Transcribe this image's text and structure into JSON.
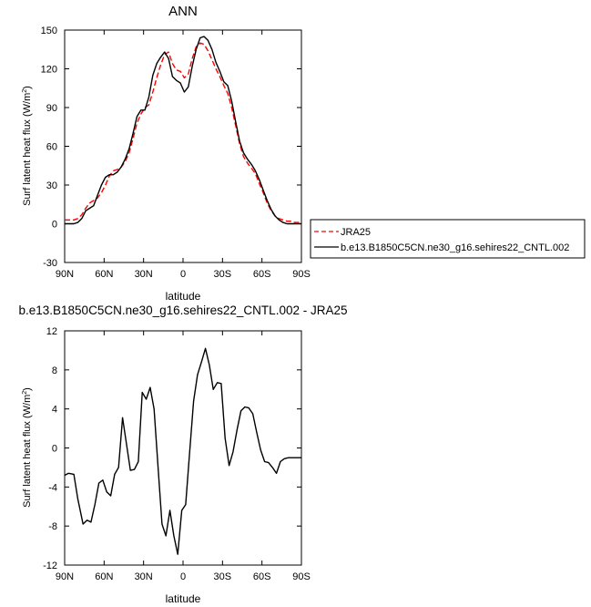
{
  "chart_data": [
    {
      "type": "line",
      "title": "ANN",
      "xlabel": "latitude",
      "ylabel": "Surf latent heat flux (W/m",
      "ylabel_sup": "2",
      "ylabel_close": ")",
      "xlim": [
        90,
        -90
      ],
      "ylim": [
        -30,
        150
      ],
      "xticks": [
        90,
        60,
        30,
        0,
        -30,
        -60,
        -90
      ],
      "xtick_labels": [
        "90N",
        "60N",
        "30N",
        "0",
        "30S",
        "60S",
        "90S"
      ],
      "yticks": [
        -30,
        0,
        30,
        60,
        90,
        120,
        150
      ],
      "ytick_labels": [
        "-30",
        "0",
        "30",
        "60",
        "90",
        "120",
        "150"
      ],
      "legend": "right-bottom, outside",
      "grid": false,
      "series": [
        {
          "name": "JRA25",
          "color": "#ff0000",
          "dash": "dashed",
          "x": [
            90,
            86,
            83,
            80,
            77,
            74,
            71,
            68,
            65,
            62,
            59,
            56,
            53,
            50,
            47,
            44,
            41,
            38,
            35,
            32,
            29,
            26,
            23,
            20,
            17,
            14,
            11,
            8,
            5,
            2,
            -1,
            -4,
            -7,
            -10,
            -13,
            -16,
            -19,
            -22,
            -25,
            -28,
            -31,
            -34,
            -37,
            -40,
            -43,
            -46,
            -49,
            -52,
            -55,
            -58,
            -61,
            -64,
            -67,
            -70,
            -73,
            -76,
            -79,
            -82,
            -85,
            -88,
            -90
          ],
          "values": [
            3,
            3,
            3,
            4,
            7,
            12,
            16,
            18,
            20,
            24,
            30,
            37,
            41,
            42,
            44,
            48,
            55,
            66,
            78,
            85,
            90,
            92,
            102,
            113,
            123,
            131,
            133,
            124,
            119,
            118,
            113,
            116,
            128,
            137,
            140,
            139,
            134,
            127,
            120,
            114,
            107,
            101,
            90,
            76,
            62,
            52,
            47,
            43,
            39,
            31,
            24,
            16,
            10,
            6,
            4,
            3,
            2,
            2,
            1,
            1,
            0
          ]
        },
        {
          "name": "b.e13.B1850C5CN.ne30_g16.sehires22_CNTL.002",
          "color": "#000000",
          "dash": "solid",
          "x": [
            90,
            86,
            83,
            80,
            77,
            74,
            71,
            68,
            65,
            62,
            59,
            56,
            53,
            50,
            47,
            44,
            41,
            38,
            35,
            32,
            29,
            26,
            23,
            20,
            17,
            14,
            11,
            8,
            5,
            2,
            -1,
            -4,
            -7,
            -10,
            -13,
            -16,
            -19,
            -22,
            -25,
            -28,
            -31,
            -34,
            -37,
            -40,
            -43,
            -46,
            -49,
            -52,
            -55,
            -58,
            -61,
            -64,
            -67,
            -70,
            -73,
            -76,
            -79,
            -82,
            -85,
            -88,
            -90
          ],
          "values": [
            0,
            0,
            0,
            1,
            4,
            10,
            12,
            14,
            22,
            30,
            36,
            38,
            38,
            40,
            44,
            50,
            58,
            70,
            83,
            88,
            88,
            98,
            115,
            124,
            129,
            133,
            128,
            114,
            111,
            109,
            102,
            106,
            122,
            135,
            144,
            145,
            142,
            135,
            125,
            118,
            110,
            107,
            95,
            79,
            64,
            55,
            50,
            46,
            41,
            34,
            26,
            18,
            11,
            6,
            3,
            1,
            0,
            0,
            0,
            0,
            0
          ]
        }
      ]
    },
    {
      "type": "line",
      "title": "b.e13.B1850C5CN.ne30_g16.sehires22_CNTL.002 - JRA25",
      "xlabel": "latitude",
      "ylabel": "Surf latent heat flux (W/m",
      "ylabel_sup": "2",
      "ylabel_close": ")",
      "xlim": [
        90,
        -90
      ],
      "ylim": [
        -12,
        12
      ],
      "xticks": [
        90,
        60,
        30,
        0,
        -30,
        -60,
        -90
      ],
      "xtick_labels": [
        "90N",
        "60N",
        "30N",
        "0",
        "30S",
        "60S",
        "90S"
      ],
      "yticks": [
        -12,
        -8,
        -4,
        0,
        4,
        8,
        12
      ],
      "ytick_labels": [
        "-12",
        "-8",
        "-4",
        "0",
        "4",
        "8",
        "12"
      ],
      "grid": false,
      "series": [
        {
          "color": "#000000",
          "dash": "solid",
          "x": [
            90,
            87,
            83,
            80,
            76,
            73,
            70,
            67,
            64,
            61,
            58,
            55,
            52,
            49,
            46,
            43,
            40,
            37,
            34,
            31,
            28,
            25,
            22,
            19,
            16,
            13,
            10,
            7,
            4,
            1,
            -2,
            -5,
            -8,
            -11,
            -14,
            -17,
            -20,
            -23,
            -26,
            -29,
            -32,
            -35,
            -38,
            -41,
            -44,
            -47,
            -50,
            -53,
            -56,
            -59,
            -62,
            -65,
            -68,
            -71,
            -74,
            -77,
            -80,
            -83,
            -86,
            -88,
            -90
          ],
          "values": [
            -2.8,
            -2.6,
            -2.7,
            -5.2,
            -7.8,
            -7.4,
            -7.6,
            -5.8,
            -3.6,
            -3.3,
            -4.5,
            -4.9,
            -2.7,
            -2.0,
            3.1,
            0.4,
            -2.3,
            -2.2,
            -1.4,
            5.7,
            5.0,
            6.2,
            4.0,
            -2.0,
            -7.8,
            -9.0,
            -6.4,
            -9.0,
            -10.9,
            -6.4,
            -5.8,
            -0.5,
            4.8,
            7.5,
            8.8,
            10.2,
            8.5,
            6.0,
            6.7,
            6.6,
            1.0,
            -1.8,
            -0.4,
            1.8,
            3.8,
            4.2,
            4.1,
            3.5,
            1.6,
            -0.2,
            -1.4,
            -1.5,
            -2.0,
            -2.6,
            -1.4,
            -1.1,
            -1.0,
            -1.0,
            -1.0,
            -1.0,
            -1.0
          ]
        }
      ]
    }
  ]
}
